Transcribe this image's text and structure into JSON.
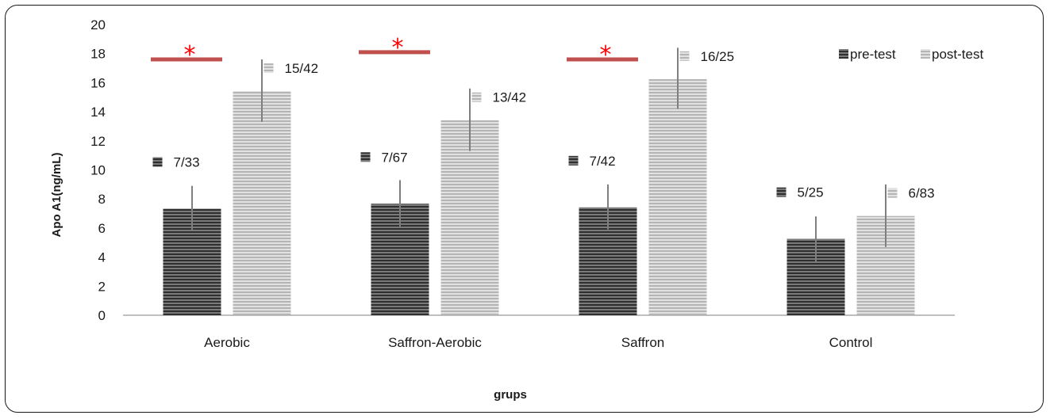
{
  "chart_data": {
    "type": "bar",
    "xlabel": "grups",
    "ylabel": "Apo  A1(ng/mL)",
    "ylim": [
      0,
      20
    ],
    "yticks": [
      0,
      2,
      4,
      6,
      8,
      10,
      12,
      14,
      16,
      18,
      20
    ],
    "grid": false,
    "legend_position": "top-right",
    "categories": [
      "Aerobic",
      "Saffron-Aerobic",
      "Saffron",
      "Control"
    ],
    "series": [
      {
        "name": "pre-test",
        "values": [
          7.33,
          7.67,
          7.42,
          5.25
        ],
        "error_low": [
          5.8,
          6.1,
          5.9,
          3.6
        ],
        "error_high": [
          8.9,
          9.3,
          9.0,
          6.8
        ],
        "data_labels": [
          "7/33",
          "7/67",
          "7/42",
          "5/25"
        ],
        "color": "#4d4d4d"
      },
      {
        "name": "post-test",
        "values": [
          15.42,
          13.42,
          16.25,
          6.83
        ],
        "error_low": [
          13.3,
          11.3,
          14.2,
          4.7
        ],
        "error_high": [
          17.6,
          15.6,
          18.4,
          9.0
        ],
        "data_labels": [
          "15/42",
          "13/42",
          "16/25",
          "6/83"
        ],
        "color": "#bdbdbd"
      }
    ],
    "significance": [
      {
        "category": "Aerobic",
        "symbol": "*",
        "y": 17.6
      },
      {
        "category": "Saffron-Aerobic",
        "symbol": "*",
        "y": 18.1
      },
      {
        "category": "Saffron",
        "symbol": "*",
        "y": 17.6
      }
    ],
    "colors": {
      "significance": "#c0504d",
      "star": "#ff0000",
      "error_bar": "#7f7f7f",
      "axis": "#bfbfbf"
    }
  }
}
